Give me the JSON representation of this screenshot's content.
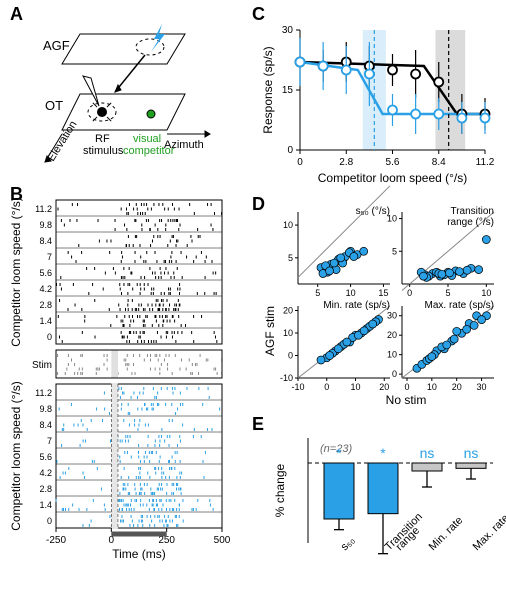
{
  "panels": {
    "A": {
      "letter": "A",
      "agf": "AGF",
      "ot": "OT",
      "rf": "RF\nstimulus",
      "visual": "visual\ncompetitor",
      "elev": "Elevation",
      "azim": "Azimuth"
    },
    "B": {
      "letter": "B",
      "ylabel": "Competitor loom speed (°/s)",
      "xlabel": "Time (ms)",
      "yticks": [
        "11.2",
        "9.8",
        "8.4",
        "7",
        "5.6",
        "4.2",
        "2.8",
        "1.4",
        "0"
      ],
      "xticks": [
        "-250",
        "0",
        "250",
        "500"
      ],
      "stim": "Stim"
    },
    "C": {
      "letter": "C",
      "ylabel": "Response (sp/s)",
      "xlabel": "Competitor loom speed (°/s)",
      "xticks": [
        "0",
        "2.8",
        "5.6",
        "8.4",
        "11.2"
      ],
      "yticks": [
        "0",
        "15",
        "30"
      ],
      "black": {
        "x": [
          0,
          1.4,
          2.8,
          4.2,
          5.6,
          7.0,
          8.4,
          9.8,
          11.2
        ],
        "y": [
          22,
          21,
          22,
          21,
          20,
          19,
          17,
          9,
          9
        ],
        "err": [
          6,
          4,
          5,
          5,
          4,
          6,
          5,
          5,
          4
        ]
      },
      "blue": {
        "x": [
          0,
          1.4,
          2.8,
          4.2,
          5.6,
          7.0,
          8.4,
          9.8,
          11.2
        ],
        "y": [
          22,
          21,
          20,
          19,
          10,
          9,
          9,
          8,
          8
        ],
        "err": [
          6,
          6,
          6,
          8,
          4,
          5,
          4,
          4,
          4
        ]
      },
      "fitBlack": {
        "x": [
          0,
          7.5,
          9.5,
          11.2
        ],
        "y": [
          22,
          21,
          9,
          9
        ]
      },
      "fitBlue": {
        "x": [
          0,
          3.5,
          5.0,
          11.2
        ],
        "y": [
          22,
          20,
          9,
          9
        ]
      },
      "shadeBlack": [
        8.2,
        10.0
      ],
      "shadeBlue": [
        3.8,
        5.2
      ]
    },
    "D": {
      "letter": "D",
      "xlabel": "No stim",
      "ylabel": "AGF stim",
      "s50": {
        "title": "s₅₀ (°/s)",
        "xt": [
          "5",
          "10",
          "15"
        ],
        "yt": [
          "5",
          "10"
        ],
        "pts": [
          [
            6,
            3.2
          ],
          [
            7,
            4
          ],
          [
            8,
            4.5
          ],
          [
            9,
            5
          ],
          [
            6.5,
            2.8
          ],
          [
            7.2,
            3.4
          ],
          [
            8.2,
            4.8
          ],
          [
            5.5,
            3.5
          ],
          [
            10,
            6
          ],
          [
            9.2,
            5.2
          ],
          [
            11,
            5.5
          ],
          [
            12,
            6
          ],
          [
            6.2,
            3.8
          ],
          [
            7.8,
            3.2
          ],
          [
            8.8,
            4.2
          ],
          [
            5.8,
            2.6
          ],
          [
            7.5,
            4.2
          ],
          [
            9.8,
            5.8
          ],
          [
            6.8,
            3.0
          ],
          [
            8.5,
            5.0
          ],
          [
            10.5,
            5.2
          ]
        ]
      },
      "trange": {
        "title": "Transition\nrange (°/s)",
        "xt": [
          "0",
          "5",
          "10"
        ],
        "yt": [
          "5",
          "10"
        ],
        "pts": [
          [
            2,
            1.4
          ],
          [
            3,
            1.6
          ],
          [
            4,
            1.2
          ],
          [
            5,
            1.8
          ],
          [
            6,
            2.0
          ],
          [
            7,
            1.6
          ],
          [
            1.5,
            1.8
          ],
          [
            2.5,
            1.2
          ],
          [
            3.5,
            1.8
          ],
          [
            4.5,
            1.4
          ],
          [
            8,
            2.4
          ],
          [
            9,
            2.2
          ],
          [
            10,
            6.8
          ],
          [
            2.2,
            1.0
          ],
          [
            3.8,
            1.6
          ],
          [
            5.5,
            1.3
          ],
          [
            6.5,
            1.9
          ],
          [
            7.5,
            2.1
          ],
          [
            1.8,
            1.2
          ],
          [
            4.2,
            1.5
          ],
          [
            5.2,
            1.7
          ]
        ]
      },
      "minrate": {
        "title": "Min. rate (sp/s)",
        "xt": [
          "-10",
          "0",
          "10",
          "20"
        ],
        "yt": [
          "-10",
          "0",
          "10",
          "20"
        ],
        "pts": [
          [
            0,
            -1
          ],
          [
            3,
            2
          ],
          [
            5,
            4
          ],
          [
            8,
            6
          ],
          [
            10,
            9
          ],
          [
            14,
            12
          ],
          [
            18,
            16
          ],
          [
            2,
            1
          ],
          [
            6,
            5
          ],
          [
            12,
            10
          ],
          [
            -2,
            -2
          ],
          [
            4,
            3
          ],
          [
            9,
            8
          ],
          [
            15,
            13
          ],
          [
            17,
            15
          ],
          [
            11,
            9
          ],
          [
            7,
            6
          ],
          [
            1,
            0
          ],
          [
            13,
            11
          ],
          [
            16,
            14
          ]
        ]
      },
      "maxrate": {
        "title": "Max. rate (sp/s)",
        "xt": [
          "0",
          "10",
          "20",
          "30"
        ],
        "yt": [
          "0",
          "10",
          "20",
          "30"
        ],
        "pts": [
          [
            4,
            3
          ],
          [
            6,
            5
          ],
          [
            8,
            7
          ],
          [
            12,
            12
          ],
          [
            15,
            13
          ],
          [
            18,
            17
          ],
          [
            22,
            21
          ],
          [
            28,
            30
          ],
          [
            32,
            30
          ],
          [
            9,
            8
          ],
          [
            14,
            14
          ],
          [
            19,
            18
          ],
          [
            25,
            26
          ],
          [
            30,
            28
          ],
          [
            11,
            10
          ],
          [
            16,
            15
          ],
          [
            20,
            22
          ],
          [
            24,
            23
          ],
          [
            27,
            25
          ],
          [
            10,
            9
          ]
        ]
      }
    },
    "E": {
      "letter": "E",
      "ylabel": "% change",
      "n": "(n=23)",
      "bars": [
        {
          "label": "s₅₀",
          "v": -42,
          "err": 8,
          "sig": "*",
          "color": "#2aa0e6"
        },
        {
          "label": "Transition\nrange",
          "v": -38,
          "err": 30,
          "sig": "*",
          "color": "#2aa0e6"
        },
        {
          "label": "Min. rate",
          "v": -6,
          "err": 12,
          "sig": "ns",
          "color": "#c6c6c6"
        },
        {
          "label": "Max. rate",
          "v": -4,
          "err": 8,
          "sig": "ns",
          "color": "#c6c6c6"
        }
      ]
    }
  },
  "colors": {
    "blue": "#2aa0e6",
    "black": "#000",
    "grey": "#9f9f9f",
    "lgrey": "#dcdcdc",
    "green": "#1fa01f"
  }
}
